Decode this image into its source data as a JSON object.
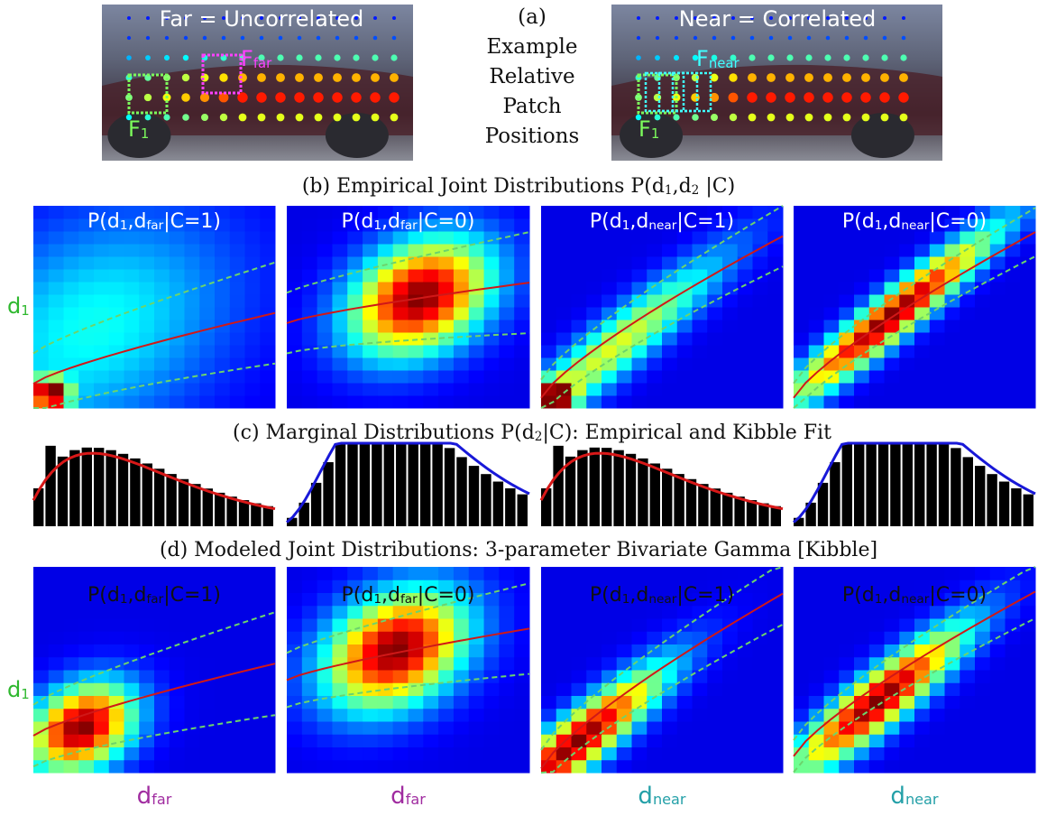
{
  "panel_a": {
    "left_title": "Far = Uncorrelated",
    "left_far": [
      "F",
      "far"
    ],
    "left_one": [
      "F",
      "1"
    ],
    "caption": [
      "(a)",
      "Example",
      "Relative",
      "Patch",
      "Positions"
    ],
    "right_title": "Near = Correlated",
    "right_near": [
      "F",
      "near"
    ],
    "right_one": [
      "F",
      "1"
    ]
  },
  "panel_b": {
    "title": [
      "(b) Empirical Joint Distributions P(d",
      "1",
      ",d",
      "2",
      " |C)"
    ],
    "plot_titles": [
      [
        "P(d",
        "1",
        ",d",
        "far",
        "|C=1)"
      ],
      [
        "P(d",
        "1",
        ",d",
        "far",
        "|C=0)"
      ],
      [
        "P(d",
        "1",
        ",d",
        "near",
        "|C=1)"
      ],
      [
        "P(d",
        "1",
        ",d",
        "near",
        "|C=0)"
      ]
    ],
    "y_label": [
      "d",
      "1"
    ]
  },
  "panel_c": {
    "title": [
      "(c) Marginal Distributions P(d",
      "2",
      "|C): Empirical and Kibble Fit"
    ]
  },
  "panel_d": {
    "title": [
      "(d) Modeled Joint Distributions: 3-parameter Bivariate Gamma [Kibble]"
    ],
    "plot_titles": [
      [
        "P(d",
        "1",
        ",d",
        "far",
        "|C=1)"
      ],
      [
        "P(d",
        "1",
        ",d",
        "far",
        "|C=0)"
      ],
      [
        "P(d",
        "1",
        ",d",
        "near",
        "|C=1)"
      ],
      [
        "P(d",
        "1",
        ",d",
        "near",
        "|C=0)"
      ]
    ],
    "y_label": [
      "d",
      "1"
    ],
    "x_labels": [
      [
        "d",
        "far"
      ],
      [
        "d",
        "far"
      ],
      [
        "d",
        "near"
      ],
      [
        "d",
        "near"
      ]
    ]
  }
}
